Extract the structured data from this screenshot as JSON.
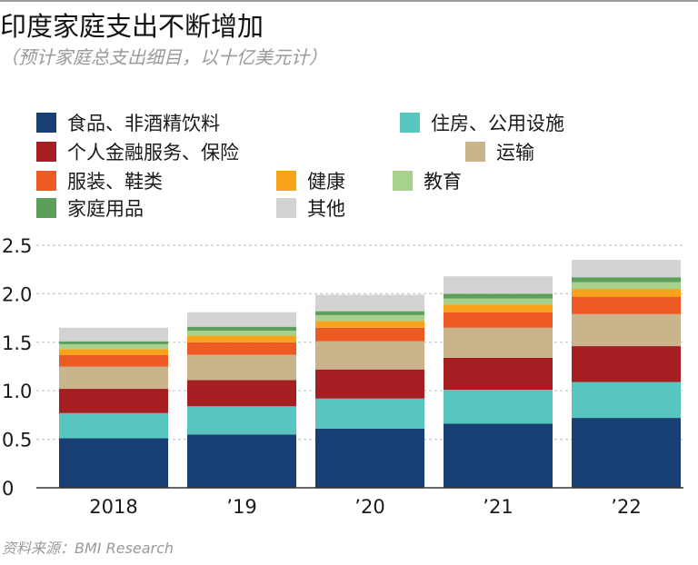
{
  "title": "印度家庭支出不断增加",
  "subtitle": "（预计家庭总支出细目，以十亿美元计）",
  "source": "资料来源：BMI Research",
  "chart_data": {
    "type": "bar",
    "stacked": true,
    "title": "印度家庭支出不断增加",
    "subtitle": "（预计家庭总支出细目，以十亿美元计）",
    "categories": [
      "2018",
      "’19",
      "’20",
      "’21",
      "’22"
    ],
    "ylim": [
      0,
      2.5
    ],
    "yticks": [
      0,
      0.5,
      1.0,
      1.5,
      2.0,
      2.5
    ],
    "ytick_labels": [
      "0",
      "0.5",
      "1.0",
      "1.5",
      "2.0",
      "2.5"
    ],
    "grid": true,
    "legend_position": "top",
    "series": [
      {
        "name": "食品、非酒精饮料",
        "color": "#173f73",
        "values": [
          0.51,
          0.55,
          0.61,
          0.66,
          0.72
        ]
      },
      {
        "name": "住房、公用设施",
        "color": "#56c6be",
        "values": [
          0.26,
          0.29,
          0.31,
          0.35,
          0.37
        ]
      },
      {
        "name": "个人金融服务、保险",
        "color": "#a51e22",
        "values": [
          0.25,
          0.27,
          0.3,
          0.33,
          0.37
        ]
      },
      {
        "name": "运输",
        "color": "#c9b48c",
        "values": [
          0.23,
          0.26,
          0.29,
          0.31,
          0.33
        ]
      },
      {
        "name": "服装、鞋类",
        "color": "#ee5a24",
        "values": [
          0.12,
          0.13,
          0.14,
          0.16,
          0.18
        ]
      },
      {
        "name": "健康",
        "color": "#f8a41b",
        "values": [
          0.06,
          0.07,
          0.07,
          0.08,
          0.08
        ]
      },
      {
        "name": "教育",
        "color": "#a9d18e",
        "values": [
          0.05,
          0.05,
          0.06,
          0.06,
          0.07
        ]
      },
      {
        "name": "家庭用品",
        "color": "#5c9e5a",
        "values": [
          0.03,
          0.04,
          0.04,
          0.05,
          0.05
        ]
      },
      {
        "name": "其他",
        "color": "#d3d3d3",
        "values": [
          0.14,
          0.15,
          0.17,
          0.18,
          0.18
        ]
      }
    ]
  }
}
